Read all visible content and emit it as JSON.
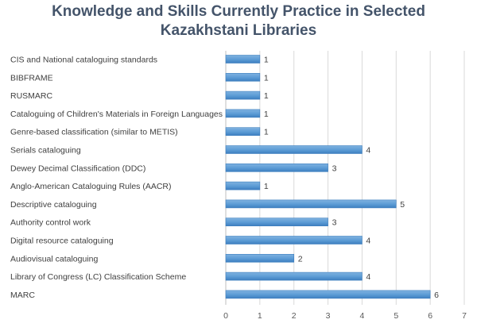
{
  "chart_data": {
    "type": "bar",
    "orientation": "horizontal",
    "title": [
      "Knowledge and Skills Currently Practice in Selected",
      "Kazakhstani Libraries"
    ],
    "categories": [
      "CIS and National cataloguing standards",
      "BIBFRAME",
      "RUSMARC",
      "Cataloguing of Children's Materials in Foreign Languages",
      "Genre-based classification (similar to METIS)",
      "Serials cataloguing",
      "Dewey Decimal Classification (DDC)",
      "Anglo-American Cataloguing Rules (AACR)",
      "Descriptive cataloguing",
      "Authority control work",
      "Digital resource cataloguing",
      "Audiovisual cataloguing",
      "Library of Congress (LC) Classification Scheme",
      "MARC"
    ],
    "values": [
      1,
      1,
      1,
      1,
      1,
      4,
      3,
      1,
      5,
      3,
      4,
      2,
      4,
      6
    ],
    "xlim": [
      0,
      7
    ],
    "xticks": [
      0,
      1,
      2,
      3,
      4,
      5,
      6,
      7
    ],
    "grid": true,
    "legend": "none",
    "data_labels": true,
    "colors": {
      "bar": "#5b9bd5",
      "bar_dark": "#3d7ebf",
      "grid": "#d9d9d9",
      "title": "#44546a"
    }
  }
}
